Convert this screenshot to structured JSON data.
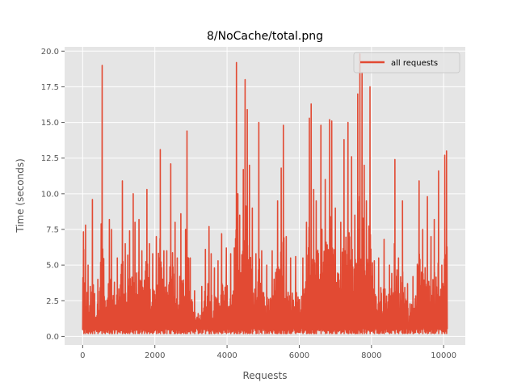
{
  "chart_data": {
    "type": "line",
    "title": "8/NoCache/total.png",
    "xlabel": "Requests",
    "ylabel": "Time (seconds)",
    "xlim": [
      -500,
      10600
    ],
    "ylim": [
      -0.6,
      20.3
    ],
    "xticks": [
      0,
      2000,
      4000,
      6000,
      8000,
      10000
    ],
    "xtick_labels": [
      "0",
      "2000",
      "4000",
      "6000",
      "8000",
      "10000"
    ],
    "yticks": [
      0.0,
      2.5,
      5.0,
      7.5,
      10.0,
      12.5,
      15.0,
      17.5,
      20.0
    ],
    "ytick_labels": [
      "0.0",
      "2.5",
      "5.0",
      "7.5",
      "10.0",
      "12.5",
      "15.0",
      "17.5",
      "20.0"
    ],
    "grid": true,
    "legend": "top-right",
    "series": [
      {
        "name": "all requests",
        "color": "#E24A33",
        "x_range": [
          0,
          10100
        ],
        "baseline": 0.2,
        "peaks": [
          [
            30,
            6.1
          ],
          [
            80,
            7.8
          ],
          [
            150,
            5.0
          ],
          [
            210,
            3.5
          ],
          [
            270,
            9.6
          ],
          [
            330,
            3.0
          ],
          [
            420,
            4.0
          ],
          [
            540,
            19.0
          ],
          [
            620,
            2.5
          ],
          [
            740,
            8.2
          ],
          [
            800,
            7.5
          ],
          [
            880,
            3.8
          ],
          [
            960,
            5.5
          ],
          [
            1100,
            10.9
          ],
          [
            1180,
            6.5
          ],
          [
            1250,
            5.7
          ],
          [
            1300,
            7.4
          ],
          [
            1400,
            10.0
          ],
          [
            1450,
            8.0
          ],
          [
            1560,
            8.2
          ],
          [
            1640,
            6.0
          ],
          [
            1780,
            10.3
          ],
          [
            1850,
            6.5
          ],
          [
            1940,
            5.8
          ],
          [
            2040,
            7.0
          ],
          [
            2150,
            13.1
          ],
          [
            2250,
            6.0
          ],
          [
            2330,
            6.0
          ],
          [
            2440,
            12.1
          ],
          [
            2560,
            8.0
          ],
          [
            2620,
            5.5
          ],
          [
            2720,
            8.6
          ],
          [
            2850,
            7.5
          ],
          [
            2890,
            14.4
          ],
          [
            2980,
            5.5
          ],
          [
            3100,
            3.2
          ],
          [
            3200,
            1.6
          ],
          [
            3300,
            3.5
          ],
          [
            3400,
            6.1
          ],
          [
            3500,
            7.7
          ],
          [
            3560,
            5.8
          ],
          [
            3650,
            4.8
          ],
          [
            3750,
            5.3
          ],
          [
            3850,
            7.2
          ],
          [
            3980,
            6.2
          ],
          [
            4100,
            5.8
          ],
          [
            4200,
            6.2
          ],
          [
            4260,
            19.2
          ],
          [
            4300,
            10.0
          ],
          [
            4350,
            8.5
          ],
          [
            4450,
            11.7
          ],
          [
            4500,
            18.0
          ],
          [
            4560,
            15.9
          ],
          [
            4620,
            12.0
          ],
          [
            4700,
            9.0
          ],
          [
            4800,
            5.8
          ],
          [
            4880,
            15.0
          ],
          [
            4960,
            6.0
          ],
          [
            5100,
            5.0
          ],
          [
            5250,
            6.0
          ],
          [
            5400,
            9.5
          ],
          [
            5500,
            11.8
          ],
          [
            5560,
            14.8
          ],
          [
            5640,
            7.0
          ],
          [
            5760,
            5.5
          ],
          [
            5900,
            5.6
          ],
          [
            6100,
            5.5
          ],
          [
            6200,
            8.0
          ],
          [
            6280,
            15.3
          ],
          [
            6330,
            16.3
          ],
          [
            6400,
            10.3
          ],
          [
            6470,
            9.5
          ],
          [
            6600,
            14.8
          ],
          [
            6720,
            11.0
          ],
          [
            6840,
            15.2
          ],
          [
            6900,
            15.1
          ],
          [
            7000,
            9.0
          ],
          [
            7150,
            8.0
          ],
          [
            7240,
            13.8
          ],
          [
            7350,
            15.0
          ],
          [
            7450,
            12.6
          ],
          [
            7540,
            8.5
          ],
          [
            7620,
            17.0
          ],
          [
            7680,
            19.8
          ],
          [
            7740,
            18.5
          ],
          [
            7800,
            12.0
          ],
          [
            7860,
            9.5
          ],
          [
            7960,
            17.5
          ],
          [
            8080,
            5.3
          ],
          [
            8200,
            5.5
          ],
          [
            8350,
            6.8
          ],
          [
            8500,
            5.0
          ],
          [
            8650,
            12.4
          ],
          [
            8750,
            5.5
          ],
          [
            8860,
            9.5
          ],
          [
            9000,
            3.7
          ],
          [
            9150,
            4.2
          ],
          [
            9320,
            10.9
          ],
          [
            9420,
            7.5
          ],
          [
            9550,
            9.8
          ],
          [
            9650,
            7.0
          ],
          [
            9740,
            8.2
          ],
          [
            9860,
            11.6
          ],
          [
            9950,
            5.0
          ],
          [
            10030,
            12.7
          ],
          [
            10080,
            13.0
          ]
        ]
      }
    ]
  }
}
